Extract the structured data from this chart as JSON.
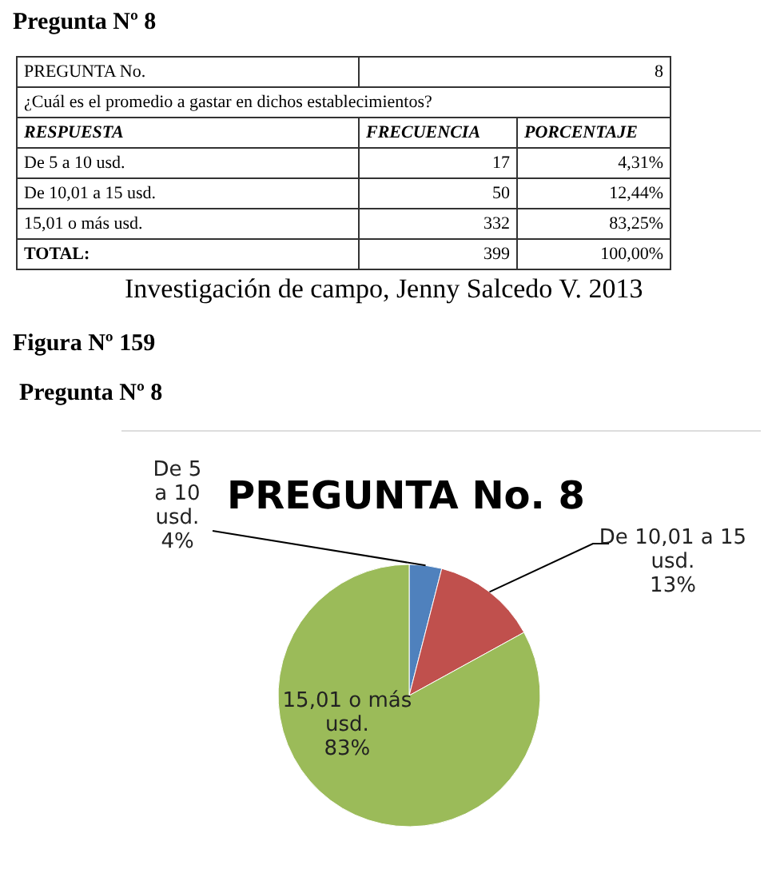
{
  "chart_data": {
    "type": "pie",
    "title": "PREGUNTA No. 8",
    "categories": [
      "De 5 a 10 usd.",
      "De 10,01 a 15 usd.",
      "15,01 o más usd."
    ],
    "values": [
      4,
      13,
      83
    ],
    "value_labels": [
      "4%",
      "13%",
      "83%"
    ],
    "colors": [
      "#4f81bd",
      "#c0504d",
      "#9bbb59"
    ],
    "legend": false,
    "annotations": [
      "Pregunta Nº 8",
      "PREGUNTA No.",
      "8",
      "¿Cuál es el promedio a gastar en dichos establecimientos?",
      "RESPUESTA",
      "FRECUENCIA",
      "PORCENTAJE",
      "De 5 a 10 usd.",
      "17",
      "4,31%",
      "De 10,01 a 15 usd.",
      "50",
      "12,44%",
      "15,01 o más usd.",
      "332",
      "83,25%",
      "TOTAL:",
      "399",
      "100,00%",
      "Investigación de campo, Jenny Salcedo V. 2013",
      "Figura Nº 159",
      "Pregunta Nº 8"
    ]
  }
}
